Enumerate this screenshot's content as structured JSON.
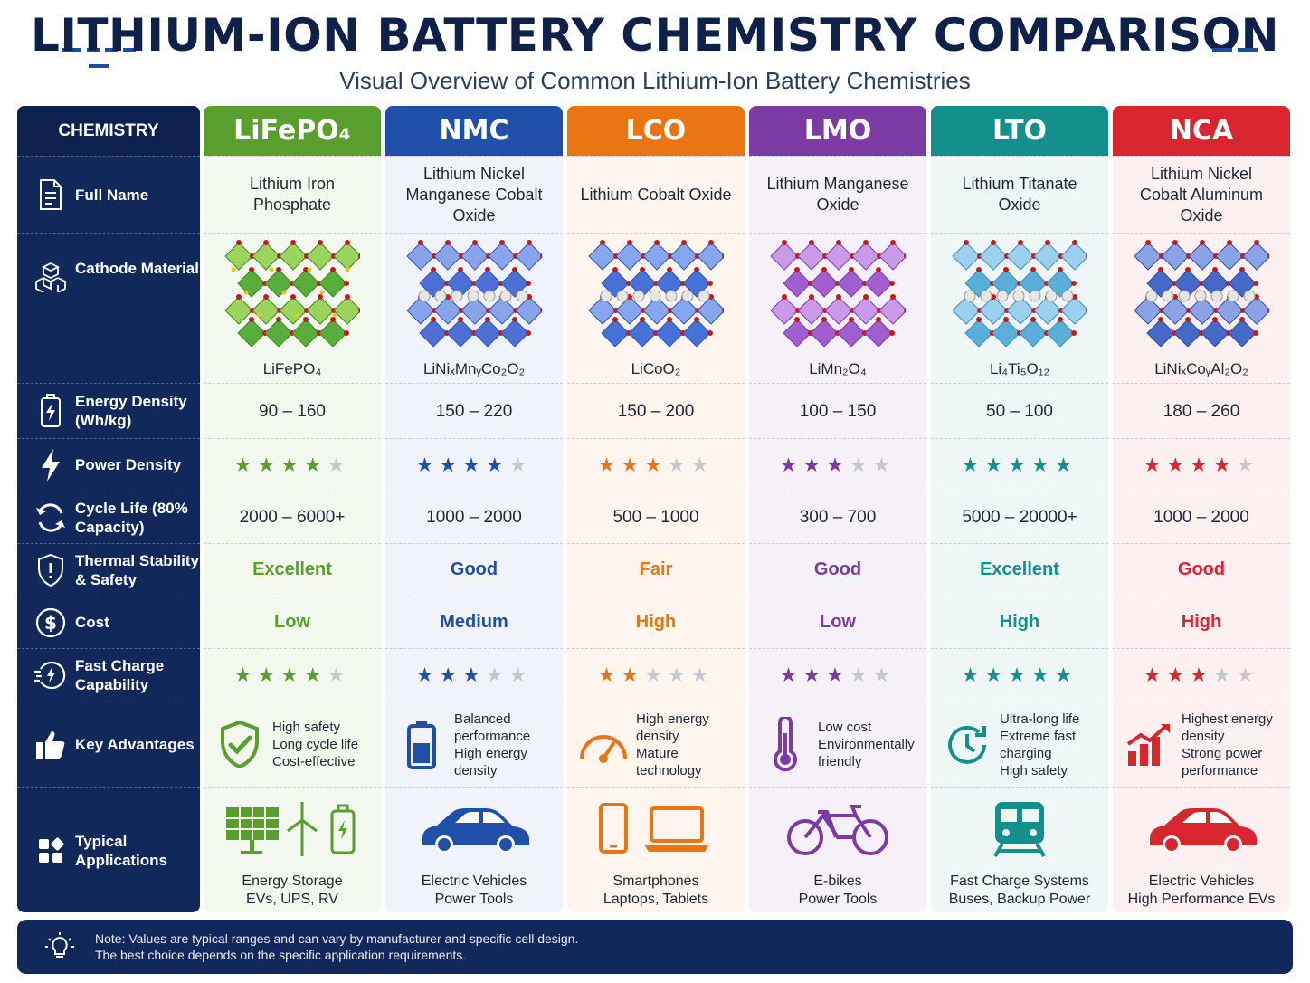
{
  "header": {
    "title": "LITHIUM-ION BATTERY CHEMISTRY COMPARISON",
    "subtitle": "Visual Overview of Common Lithium-Ion Battery Chemistries"
  },
  "rows": {
    "header": "CHEMISTRY",
    "full_name": "Full Name",
    "cathode": "Cathode Material",
    "energy": "Energy Density (Wh/kg)",
    "power": "Power Density",
    "cycle": "Cycle Life (80% Capacity)",
    "thermal": "Thermal Stability & Safety",
    "cost": "Cost",
    "fast": "Fast Charge Capability",
    "adv": "Key Advantages",
    "apps": "Typical Applications"
  },
  "columns": [
    {
      "name": "LiFePO₄",
      "color": "#5a9e2f",
      "full_name": "Lithium Iron Phosphate",
      "formula": "LiFePO₄",
      "energy": "90 – 160",
      "power_stars": 4,
      "cycle": "2000 – 6000+",
      "thermal": "Excellent",
      "cost": "Low",
      "fast_stars": 4,
      "adv": [
        "High safety",
        "Long cycle life",
        "Cost-effective"
      ],
      "adv_icon": "shield-check-icon",
      "apps": [
        "Energy Storage",
        "EVs, UPS, RV"
      ],
      "app_icon": "solar-wind-battery-icon"
    },
    {
      "name": "NMC",
      "color": "#1f4fa8",
      "full_name": "Lithium Nickel Manganese Cobalt Oxide",
      "formula": "LiNiₓMnᵧCo₂O₂",
      "energy": "150 – 220",
      "power_stars": 4,
      "cycle": "1000 – 2000",
      "thermal": "Good",
      "cost": "Medium",
      "fast_stars": 3,
      "adv": [
        "Balanced performance",
        "High energy density"
      ],
      "adv_icon": "battery-icon",
      "apps": [
        "Electric Vehicles",
        "Power Tools"
      ],
      "app_icon": "car-icon"
    },
    {
      "name": "LCO",
      "color": "#e87511",
      "full_name": "Lithium Cobalt Oxide",
      "formula": "LiCoO₂",
      "energy": "150 – 200",
      "power_stars": 3,
      "cycle": "500 – 1000",
      "thermal": "Fair",
      "cost": "High",
      "fast_stars": 2,
      "adv": [
        "High energy density",
        "Mature technology"
      ],
      "adv_icon": "gauge-icon",
      "apps": [
        "Smartphones",
        "Laptops, Tablets"
      ],
      "app_icon": "phone-laptop-icon"
    },
    {
      "name": "LMO",
      "color": "#7b3ba3",
      "full_name": "Lithium Manganese Oxide",
      "formula": "LiMn₂O₄",
      "energy": "100 – 150",
      "power_stars": 3,
      "cycle": "300 – 700",
      "thermal": "Good",
      "cost": "Low",
      "fast_stars": 3,
      "adv": [
        "Low cost",
        "Environmentally friendly"
      ],
      "adv_icon": "thermometer-icon",
      "apps": [
        "E-bikes",
        "Power Tools"
      ],
      "app_icon": "bicycle-icon"
    },
    {
      "name": "LTO",
      "color": "#13908c",
      "full_name": "Lithium Titanate Oxide",
      "formula": "Li₄Ti₅O₁₂",
      "energy": "50 – 100",
      "power_stars": 5,
      "cycle": "5000 – 20000+",
      "thermal": "Excellent",
      "cost": "High",
      "fast_stars": 5,
      "adv": [
        "Ultra-long life",
        "Extreme fast charging",
        "High safety"
      ],
      "adv_icon": "clock-icon",
      "apps": [
        "Fast Charge Systems",
        "Buses, Backup Power"
      ],
      "app_icon": "train-icon"
    },
    {
      "name": "NCA",
      "color": "#d9252f",
      "full_name": "Lithium Nickel Cobalt Aluminum Oxide",
      "formula": "LiNiₓCoᵧAl₂O₂",
      "energy": "180 – 260",
      "power_stars": 4,
      "cycle": "1000 – 2000",
      "thermal": "Good",
      "cost": "High",
      "fast_stars": 3,
      "adv": [
        "Highest energy density",
        "Strong power performance"
      ],
      "adv_icon": "bar-chart-up-icon",
      "apps": [
        "Electric Vehicles",
        "High Performance EVs"
      ],
      "app_icon": "car-icon"
    }
  ],
  "note": {
    "line1": "Note: Values are typical ranges and can vary by manufacturer and specific cell design.",
    "line2": "The best choice depends on the specific application requirements."
  }
}
